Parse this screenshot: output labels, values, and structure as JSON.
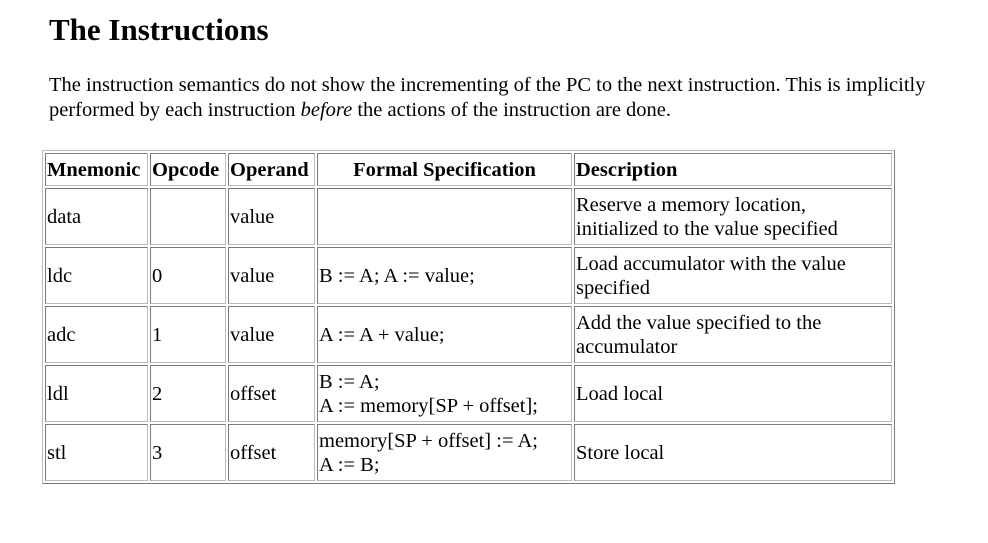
{
  "heading": "The Instructions",
  "intro": {
    "before_em": "The instruction semantics do not show the incrementing of the PC to the next instruction. This is implicitly performed by each instruction ",
    "em": "before",
    "after_em": " the actions of the instruction are done."
  },
  "table": {
    "headers": [
      "Mnemonic",
      "Opcode",
      "Operand",
      "Formal Specification",
      "Description"
    ],
    "rows": [
      {
        "mnemonic": "data",
        "opcode": "",
        "operand": "value",
        "spec": [],
        "description": [
          "Reserve a memory location,",
          "initialized to the value specified"
        ]
      },
      {
        "mnemonic": "ldc",
        "opcode": "0",
        "operand": "value",
        "spec": [
          "B := A; A := value;"
        ],
        "description": [
          "Load accumulator with the value",
          "specified"
        ]
      },
      {
        "mnemonic": "adc",
        "opcode": "1",
        "operand": "value",
        "spec": [
          "A := A + value;"
        ],
        "description": [
          "Add the value specified to the",
          "accumulator"
        ]
      },
      {
        "mnemonic": "ldl",
        "opcode": "2",
        "operand": "offset",
        "spec": [
          "B := A;",
          "A := memory[SP + offset];"
        ],
        "description": [
          "Load local"
        ]
      },
      {
        "mnemonic": "stl",
        "opcode": "3",
        "operand": "offset",
        "spec": [
          "memory[SP + offset] := A;",
          "A := B;"
        ],
        "description": [
          "Store local"
        ]
      }
    ]
  }
}
